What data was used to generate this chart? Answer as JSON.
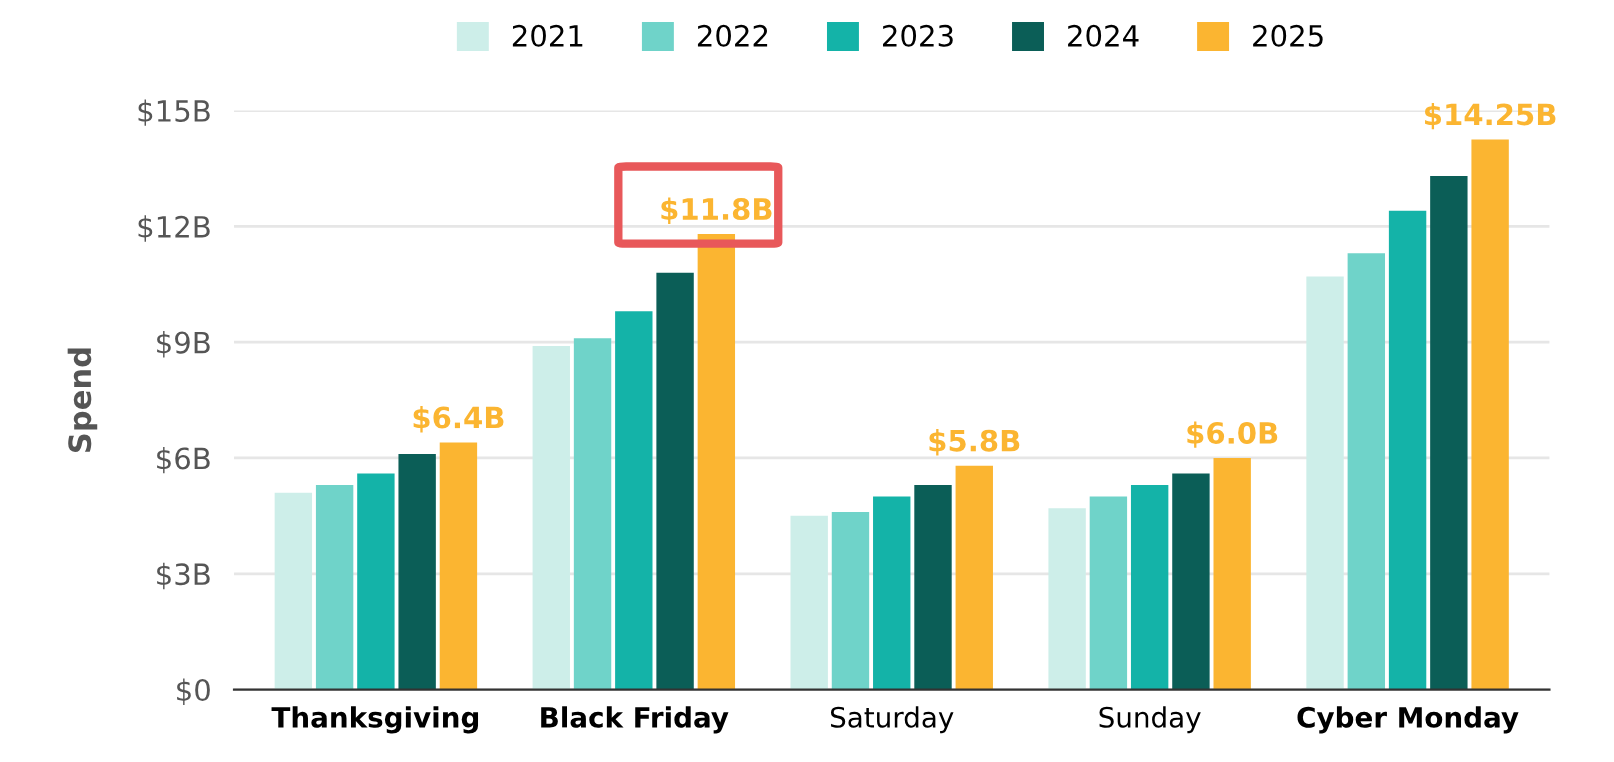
{
  "chart_data": {
    "type": "bar",
    "ylabel": "Spend",
    "categories": [
      "Thanksgiving",
      "Black Friday",
      "Saturday",
      "Sunday",
      "Cyber Monday"
    ],
    "series": [
      {
        "name": "2021",
        "color": "#cdeee9",
        "values": [
          5.1,
          8.9,
          4.5,
          4.7,
          10.7
        ]
      },
      {
        "name": "2022",
        "color": "#6fd3c9",
        "values": [
          5.3,
          9.1,
          4.6,
          5.0,
          11.3
        ]
      },
      {
        "name": "2023",
        "color": "#14b3a8",
        "values": [
          5.6,
          9.8,
          5.0,
          5.3,
          12.4
        ]
      },
      {
        "name": "2024",
        "color": "#0b5e57",
        "values": [
          6.1,
          10.8,
          5.3,
          5.6,
          13.3
        ]
      },
      {
        "name": "2025",
        "color": "#fbb531",
        "values": [
          6.4,
          11.8,
          5.8,
          6.0,
          14.25
        ],
        "value_labels": [
          "$6.4B",
          "$11.8B",
          "$5.8B",
          "$6.0B",
          "$14.25B"
        ]
      }
    ],
    "ylim": [
      0,
      15
    ],
    "yticks": [
      {
        "value": 0,
        "label": "$0"
      },
      {
        "value": 3,
        "label": "$3B"
      },
      {
        "value": 6,
        "label": "$6B"
      },
      {
        "value": 9,
        "label": "$9B"
      },
      {
        "value": 12,
        "label": "$12B"
      },
      {
        "value": 15,
        "label": "$15B"
      }
    ],
    "grid": "y",
    "legend": "top"
  }
}
